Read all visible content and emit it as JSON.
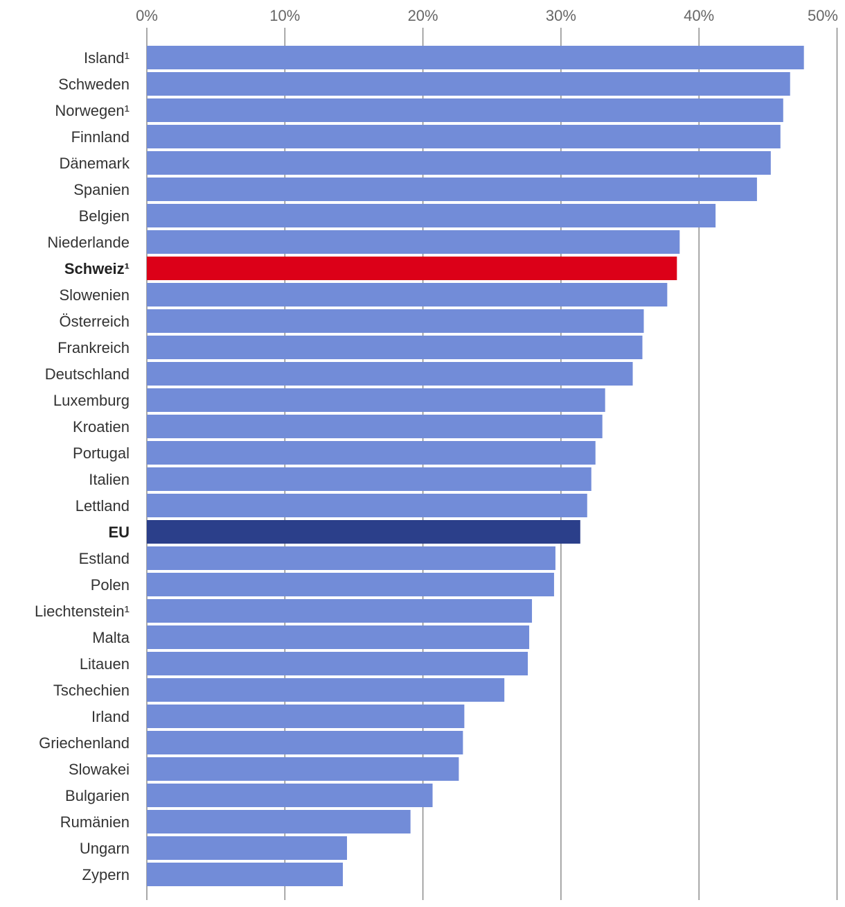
{
  "chart_data": {
    "type": "bar",
    "orientation": "horizontal",
    "title": "",
    "xlabel": "",
    "ylabel": "",
    "xlim": [
      0,
      50
    ],
    "x_ticks": [
      0,
      10,
      20,
      30,
      40,
      50
    ],
    "x_tick_labels": [
      "0%",
      "10%",
      "20%",
      "30%",
      "40%",
      "50%"
    ],
    "grid": true,
    "colors": {
      "default": "#728cd8",
      "highlight_switzerland": "#dc0018",
      "highlight_eu": "#2b3f8a"
    },
    "bars": [
      {
        "label": "Island¹",
        "value": 47.6,
        "bold": false,
        "color_key": "default"
      },
      {
        "label": "Schweden",
        "value": 46.6,
        "bold": false,
        "color_key": "default"
      },
      {
        "label": "Norwegen¹",
        "value": 46.1,
        "bold": false,
        "color_key": "default"
      },
      {
        "label": "Finnland",
        "value": 45.9,
        "bold": false,
        "color_key": "default"
      },
      {
        "label": "Dänemark",
        "value": 45.2,
        "bold": false,
        "color_key": "default"
      },
      {
        "label": "Spanien",
        "value": 44.2,
        "bold": false,
        "color_key": "default"
      },
      {
        "label": "Belgien",
        "value": 41.2,
        "bold": false,
        "color_key": "default"
      },
      {
        "label": "Niederlande",
        "value": 38.6,
        "bold": false,
        "color_key": "default"
      },
      {
        "label": "Schweiz¹",
        "value": 38.4,
        "bold": true,
        "color_key": "highlight_switzerland"
      },
      {
        "label": "Slowenien",
        "value": 37.7,
        "bold": false,
        "color_key": "default"
      },
      {
        "label": "Österreich",
        "value": 36.0,
        "bold": false,
        "color_key": "default"
      },
      {
        "label": "Frankreich",
        "value": 35.9,
        "bold": false,
        "color_key": "default"
      },
      {
        "label": "Deutschland",
        "value": 35.2,
        "bold": false,
        "color_key": "default"
      },
      {
        "label": "Luxemburg",
        "value": 33.2,
        "bold": false,
        "color_key": "default"
      },
      {
        "label": "Kroatien",
        "value": 33.0,
        "bold": false,
        "color_key": "default"
      },
      {
        "label": "Portugal",
        "value": 32.5,
        "bold": false,
        "color_key": "default"
      },
      {
        "label": "Italien",
        "value": 32.2,
        "bold": false,
        "color_key": "default"
      },
      {
        "label": "Lettland",
        "value": 31.9,
        "bold": false,
        "color_key": "default"
      },
      {
        "label": "EU",
        "value": 31.4,
        "bold": true,
        "color_key": "highlight_eu"
      },
      {
        "label": "Estland",
        "value": 29.6,
        "bold": false,
        "color_key": "default"
      },
      {
        "label": "Polen",
        "value": 29.5,
        "bold": false,
        "color_key": "default"
      },
      {
        "label": "Liechtenstein¹",
        "value": 27.9,
        "bold": false,
        "color_key": "default"
      },
      {
        "label": "Malta",
        "value": 27.7,
        "bold": false,
        "color_key": "default"
      },
      {
        "label": "Litauen",
        "value": 27.6,
        "bold": false,
        "color_key": "default"
      },
      {
        "label": "Tschechien",
        "value": 25.9,
        "bold": false,
        "color_key": "default"
      },
      {
        "label": "Irland",
        "value": 23.0,
        "bold": false,
        "color_key": "default"
      },
      {
        "label": "Griechenland",
        "value": 22.9,
        "bold": false,
        "color_key": "default"
      },
      {
        "label": "Slowakei",
        "value": 22.6,
        "bold": false,
        "color_key": "default"
      },
      {
        "label": "Bulgarien",
        "value": 20.7,
        "bold": false,
        "color_key": "default"
      },
      {
        "label": "Rumänien",
        "value": 19.1,
        "bold": false,
        "color_key": "default"
      },
      {
        "label": "Ungarn",
        "value": 14.5,
        "bold": false,
        "color_key": "default"
      },
      {
        "label": "Zypern",
        "value": 14.2,
        "bold": false,
        "color_key": "default"
      }
    ]
  }
}
